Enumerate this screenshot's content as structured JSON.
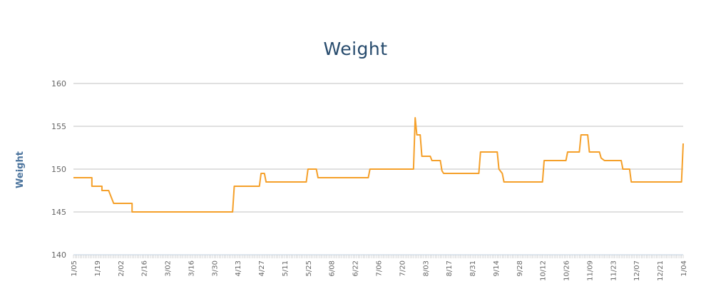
{
  "chart_data": {
    "type": "line",
    "title": "Weight",
    "xlabel": "",
    "ylabel": "Weight",
    "ylim": [
      140,
      160
    ],
    "yticks": [
      140,
      145,
      150,
      155,
      160
    ],
    "xlim": [
      0,
      364
    ],
    "xticks": [
      {
        "label": "1/05",
        "day": 0
      },
      {
        "label": "1/19",
        "day": 14
      },
      {
        "label": "2/02",
        "day": 28
      },
      {
        "label": "2/16",
        "day": 42
      },
      {
        "label": "3/02",
        "day": 56
      },
      {
        "label": "3/16",
        "day": 70
      },
      {
        "label": "3/30",
        "day": 84
      },
      {
        "label": "4/13",
        "day": 98
      },
      {
        "label": "4/27",
        "day": 112
      },
      {
        "label": "5/11",
        "day": 126
      },
      {
        "label": "5/25",
        "day": 140
      },
      {
        "label": "6/08",
        "day": 154
      },
      {
        "label": "6/22",
        "day": 168
      },
      {
        "label": "7/06",
        "day": 182
      },
      {
        "label": "7/20",
        "day": 196
      },
      {
        "label": "8/03",
        "day": 210
      },
      {
        "label": "8/17",
        "day": 224
      },
      {
        "label": "8/31",
        "day": 238
      },
      {
        "label": "9/14",
        "day": 252
      },
      {
        "label": "9/28",
        "day": 266
      },
      {
        "label": "10/12",
        "day": 280
      },
      {
        "label": "10/26",
        "day": 294
      },
      {
        "label": "11/09",
        "day": 308
      },
      {
        "label": "11/23",
        "day": 322
      },
      {
        "label": "12/07",
        "day": 336
      },
      {
        "label": "12/21",
        "day": 350
      },
      {
        "label": "1/04",
        "day": 364
      }
    ],
    "grid": true,
    "series": [
      {
        "color": "#f5a02a",
        "points": [
          [
            0,
            149
          ],
          [
            11,
            149
          ],
          [
            11,
            148
          ],
          [
            17,
            148
          ],
          [
            17,
            147.5
          ],
          [
            21,
            147.5
          ],
          [
            22,
            147
          ],
          [
            24,
            146
          ],
          [
            35,
            146
          ],
          [
            35,
            145
          ],
          [
            95,
            145
          ],
          [
            96,
            148
          ],
          [
            111,
            148
          ],
          [
            112,
            149.5
          ],
          [
            114,
            149.5
          ],
          [
            115,
            148.5
          ],
          [
            139,
            148.5
          ],
          [
            140,
            150
          ],
          [
            145,
            150
          ],
          [
            146,
            149
          ],
          [
            176,
            149
          ],
          [
            177,
            150
          ],
          [
            203,
            150
          ],
          [
            204,
            156
          ],
          [
            205,
            154
          ],
          [
            207,
            154
          ],
          [
            208,
            151.5
          ],
          [
            213,
            151.5
          ],
          [
            214,
            151
          ],
          [
            219,
            151
          ],
          [
            220,
            149.8
          ],
          [
            221,
            149.5
          ],
          [
            242,
            149.5
          ],
          [
            243,
            152
          ],
          [
            253,
            152
          ],
          [
            254,
            150
          ],
          [
            256,
            149.5
          ],
          [
            257,
            148.5
          ],
          [
            280,
            148.5
          ],
          [
            281,
            151
          ],
          [
            294,
            151
          ],
          [
            295,
            152
          ],
          [
            302,
            152
          ],
          [
            303,
            154
          ],
          [
            307,
            154
          ],
          [
            308,
            152
          ],
          [
            314,
            152
          ],
          [
            315,
            151.3
          ],
          [
            317,
            151
          ],
          [
            327,
            151
          ],
          [
            328,
            150
          ],
          [
            332,
            150
          ],
          [
            333,
            148.5
          ],
          [
            363,
            148.5
          ],
          [
            364,
            153
          ]
        ]
      }
    ]
  }
}
